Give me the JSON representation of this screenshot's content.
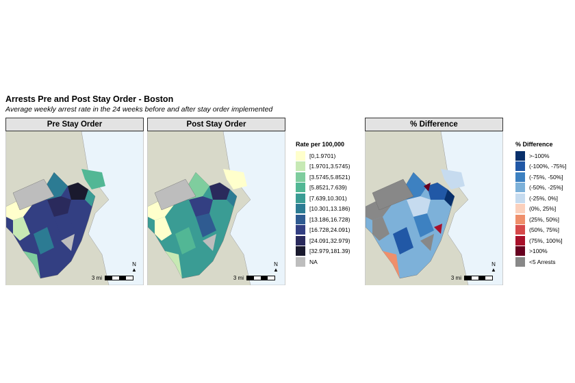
{
  "header": {
    "title": "Arrests Pre and Post Stay Order - Boston",
    "subtitle": "Average weekly arrest rate in the 24 weeks before and after stay order implemented"
  },
  "panels": [
    {
      "label": "Pre Stay Order"
    },
    {
      "label": "Post Stay Order"
    },
    {
      "label": "% Difference"
    }
  ],
  "scale_label": "3 mi",
  "north_label": "N",
  "legend_rate": {
    "title": "Rate per 100,000",
    "items": [
      {
        "label": "[0,1.9701)",
        "color": "#ffffcc"
      },
      {
        "label": "[1.9701,3.5745)",
        "color": "#c7e9b4"
      },
      {
        "label": "[3.5745,5.8521)",
        "color": "#7fcd9e"
      },
      {
        "label": "[5.8521,7.639)",
        "color": "#52b795"
      },
      {
        "label": "[7.639,10.301)",
        "color": "#3a9c94"
      },
      {
        "label": "[10.301,13.186)",
        "color": "#2c7b93"
      },
      {
        "label": "[13.186,16.728)",
        "color": "#2f5b91"
      },
      {
        "label": "[16.728,24.091)",
        "color": "#333f82"
      },
      {
        "label": "[24.091,32.979)",
        "color": "#2a2a5c"
      },
      {
        "label": "[32.979,181.39)",
        "color": "#1a1a2e"
      },
      {
        "label": "NA",
        "color": "#bdbdbd"
      }
    ]
  },
  "legend_diff": {
    "title": "% Difference",
    "items": [
      {
        "label": ">-100%",
        "color": "#08306b"
      },
      {
        "label": "(-100%, -75%]",
        "color": "#2158a6"
      },
      {
        "label": "(-75%, -50%]",
        "color": "#3d81c1"
      },
      {
        "label": "(-50%, -25%]",
        "color": "#7db1d9"
      },
      {
        "label": "(-25%, 0%]",
        "color": "#c6dbef"
      },
      {
        "label": "(0%, 25%]",
        "color": "#fbd0bc"
      },
      {
        "label": "(25%, 50%]",
        "color": "#ef8f6b"
      },
      {
        "label": "(50%, 75%]",
        "color": "#d6494a"
      },
      {
        "label": "(75%, 100%]",
        "color": "#a8102a"
      },
      {
        "label": ">100%",
        "color": "#67001f"
      },
      {
        "label": "<5 Arrests",
        "color": "#888888"
      }
    ]
  }
}
